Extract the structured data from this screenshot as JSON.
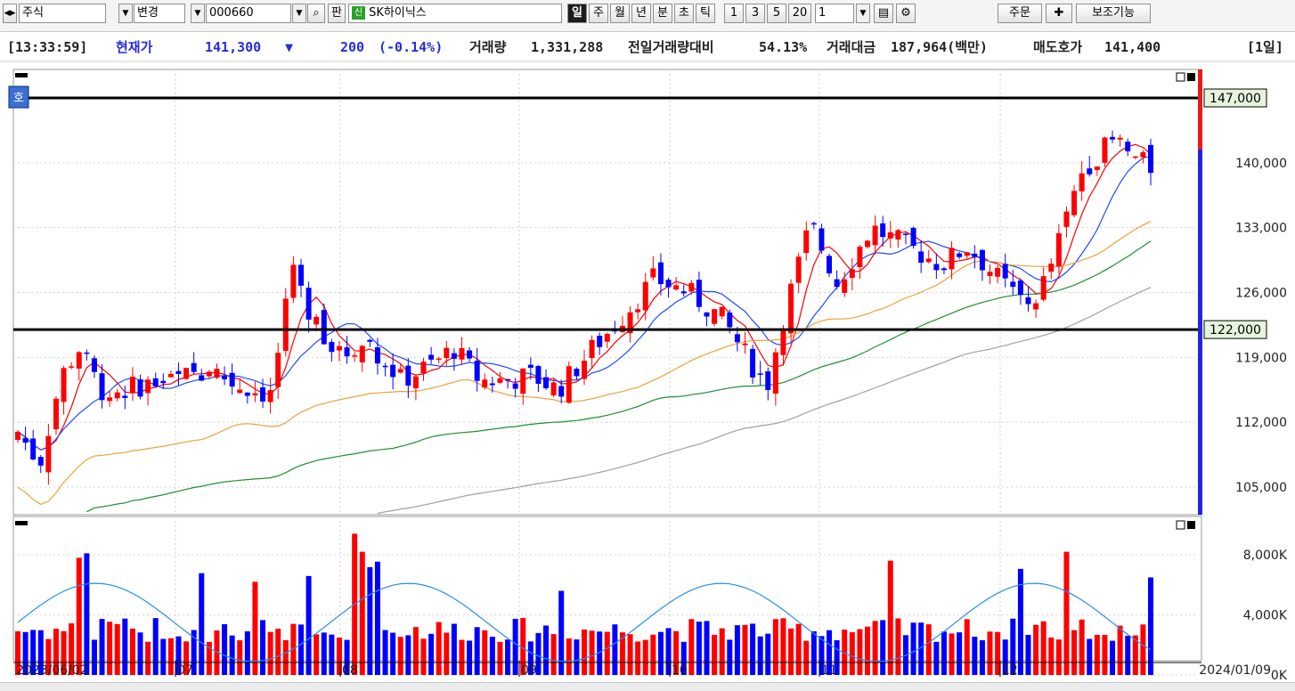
{
  "toolbar": {
    "market": "주식",
    "change_label": "변경",
    "code": "000660",
    "pan_label": "판",
    "stock_name": "SK하이닉스",
    "periods": [
      "일",
      "주",
      "월",
      "년",
      "분",
      "초",
      "틱"
    ],
    "active_period": "일",
    "intervals": [
      "1",
      "3",
      "5",
      "20"
    ],
    "count": "1",
    "order_label": "주문",
    "aux_label": "보조기능"
  },
  "info": {
    "time": "[13:33:59]",
    "price_label": "현재가",
    "price": "141,300",
    "down_arrow": "▼",
    "change": "200",
    "change_pct": "(-0.14%)",
    "volume_label": "거래량",
    "volume": "1,331,288",
    "vol_ratio_label": "전일거래량대비",
    "vol_ratio": "54.13%",
    "amount_label": "거래대금",
    "amount": "187,964(백만)",
    "ask_label": "매도호가",
    "ask": "141,400",
    "period_tag": "[1일]"
  },
  "chart_data": {
    "type": "candlestick",
    "title": "SK하이닉스 000660",
    "start_date": "2023/06/02",
    "end_date": "2024/01/09",
    "month_labels": [
      "07",
      "08",
      "09",
      "10",
      "11",
      "12"
    ],
    "price_ticks": [
      "147,000",
      "140,000",
      "133,000",
      "126,000",
      "119,000",
      "112,000",
      "105,000"
    ],
    "volume_ticks": [
      "8,000K",
      "4,000K",
      "0K"
    ],
    "price_axis_tag": "호",
    "horizontal_lines": [
      {
        "label": "147,000",
        "value": 147000
      },
      {
        "label": "122,000",
        "value": 122000
      }
    ],
    "colors": {
      "up": "#ff0000",
      "down": "#0000ff",
      "ma5": "#ff0000",
      "ma20": "#1e4bff",
      "ma60": "#e8a33c",
      "ma120": "#1f8f2f",
      "ma240": "#a0a0a0",
      "volume_ma": "#2a8fe6"
    }
  }
}
